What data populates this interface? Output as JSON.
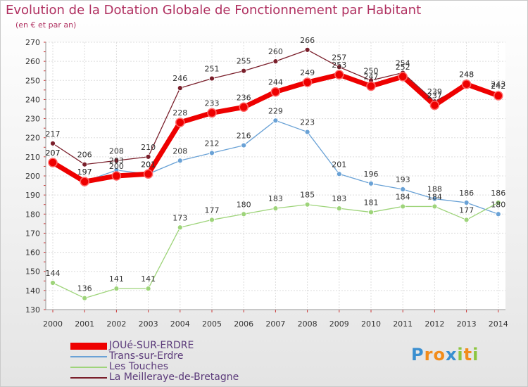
{
  "header": {
    "title": "Evolution de la Dotation Globale de Fonctionnement par Habitant",
    "subtitle": "(en € et par an)"
  },
  "chart_data": {
    "type": "line",
    "title": "Evolution de la Dotation Globale de Fonctionnement par Habitant",
    "subtitle": "(en € et par an)",
    "xlabel": "",
    "ylabel": "",
    "x": [
      "2000",
      "2001",
      "2002",
      "2003",
      "2004",
      "2005",
      "2006",
      "2007",
      "2008",
      "2009",
      "2010",
      "2011",
      "2012",
      "2013",
      "2014"
    ],
    "ylim": [
      130,
      270
    ],
    "yticks": [
      130,
      140,
      150,
      160,
      170,
      180,
      190,
      200,
      210,
      220,
      230,
      240,
      250,
      260,
      270
    ],
    "grid": true,
    "legend_position": "bottom-left",
    "series": [
      {
        "name": "La Meilleraye-de-Bretagne",
        "color": "#7a1f2b",
        "values": [
          217,
          206,
          208,
          210,
          246,
          251,
          255,
          260,
          266,
          257,
          250,
          254,
          239,
          248,
          243
        ],
        "labels": [
          "217",
          "206",
          "208",
          "210",
          "246",
          "251",
          "255",
          "260",
          "266",
          "257",
          "250",
          "254",
          "239",
          "248",
          "243"
        ]
      },
      {
        "name": "Trans-sur-Erdre",
        "color": "#6aa2d6",
        "values": [
          207,
          197,
          203,
          201,
          208,
          212,
          216,
          229,
          223,
          201,
          196,
          193,
          188,
          186,
          180
        ],
        "labels": [
          "207",
          "197",
          "203",
          "201",
          "208",
          "212",
          "216",
          "229",
          "223",
          "201",
          "196",
          "193",
          "188",
          "186",
          "180"
        ]
      },
      {
        "name": "Les Touches",
        "color": "#9ed47a",
        "values": [
          144,
          136,
          141,
          141,
          173,
          177,
          180,
          183,
          185,
          183,
          181,
          184,
          184,
          177,
          186
        ],
        "labels": [
          "144",
          "136",
          "141",
          "141",
          "173",
          "177",
          "180",
          "183",
          "185",
          "183",
          "181",
          "184",
          "184",
          "177",
          "186"
        ]
      },
      {
        "name": "JOUé-SUR-ERDRE",
        "color": "#ee0000",
        "values": [
          207,
          197,
          200,
          201,
          228,
          233,
          236,
          244,
          249,
          253,
          247,
          252,
          237,
          248,
          242
        ],
        "labels": [
          "207",
          "197",
          "200",
          "201",
          "228",
          "233",
          "236",
          "244",
          "249",
          "253",
          "247",
          "252",
          "237",
          "248",
          "242"
        ]
      }
    ]
  },
  "legend": [
    {
      "label": "JOUé-SUR-ERDRE",
      "color": "#ee0000",
      "thick": true
    },
    {
      "label": "Trans-sur-Erdre",
      "color": "#6aa2d6",
      "thick": false
    },
    {
      "label": "Les Touches",
      "color": "#9ed47a",
      "thick": false
    },
    {
      "label": "La Meilleraye-de-Bretagne",
      "color": "#7a1f2b",
      "thick": false
    }
  ],
  "logo": {
    "letters": [
      "P",
      "r",
      "o",
      "x",
      "i",
      "t",
      "i"
    ],
    "colors": [
      "#3a8fd0",
      "#f28c1b",
      "#f28c1b",
      "#3a8fd0",
      "#8cc63f",
      "#f28c1b",
      "#8cc63f"
    ]
  }
}
